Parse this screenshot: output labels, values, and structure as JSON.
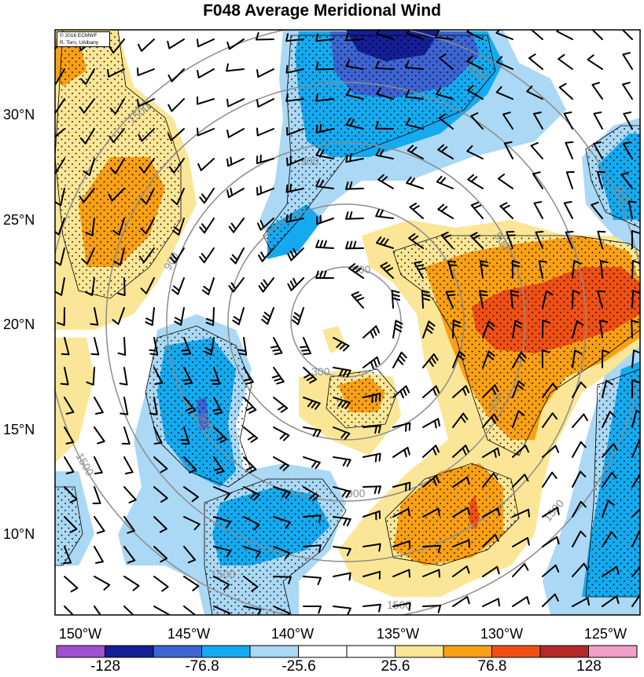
{
  "title": "F048 Average Meridional Wind",
  "credit": {
    "line1": "© 2016 ECMWF",
    "line2": "R. Torn, UAlbany"
  },
  "lat_labels": [
    "30°N",
    "25°N",
    "20°N",
    "15°N",
    "10°N"
  ],
  "lon_labels": [
    "150°W",
    "145°W",
    "140°W",
    "135°W",
    "130°W",
    "125°W"
  ],
  "colorbar": {
    "labels": [
      "-128",
      "-76.8",
      "-25.6",
      "25.6",
      "76.8",
      "128"
    ],
    "colors": [
      "#a050d0",
      "#141e96",
      "#3c64d2",
      "#14aaf0",
      "#aad8f5",
      "#ffffff",
      "#ffffff",
      "#fae696",
      "#faa014",
      "#f05014",
      "#b42828",
      "#f0a0c8"
    ]
  },
  "range_rings": {
    "labels": [
      "300",
      "900",
      "1500"
    ],
    "color": "#8c8c8c"
  },
  "colors": {
    "background": "#ffffff",
    "frame": "#000000",
    "stipple": "#000000",
    "barb": "#000000"
  }
}
